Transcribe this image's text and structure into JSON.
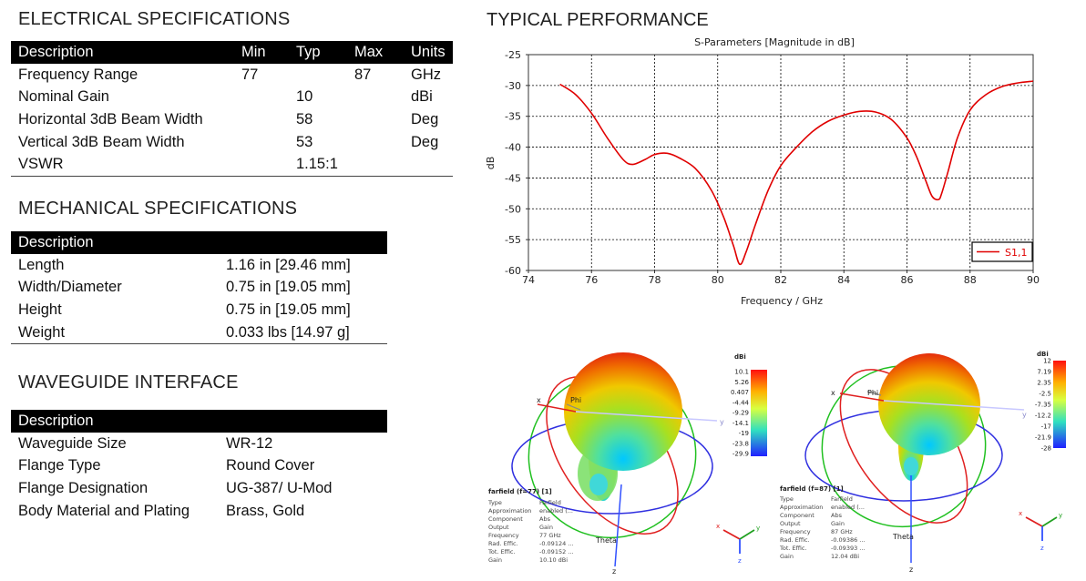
{
  "electrical": {
    "title": "ELECTRICAL SPECIFICATIONS",
    "headers": [
      "Description",
      "Min",
      "Typ",
      "Max",
      "Units"
    ],
    "rows": [
      [
        "Frequency Range",
        "77",
        "",
        "87",
        "GHz"
      ],
      [
        "Nominal Gain",
        "",
        "10",
        "",
        "dBi"
      ],
      [
        "Horizontal 3dB Beam Width",
        "",
        "58",
        "",
        "Deg"
      ],
      [
        "Vertical 3dB Beam Width",
        "",
        "53",
        "",
        "Deg"
      ],
      [
        "VSWR",
        "",
        "1.15:1",
        "",
        ""
      ]
    ]
  },
  "mechanical": {
    "title": "MECHANICAL SPECIFICATIONS",
    "header": "Description",
    "rows": [
      [
        "Length",
        "1.16 in [29.46 mm]"
      ],
      [
        "Width/Diameter",
        "0.75 in [19.05 mm]"
      ],
      [
        "Height",
        "0.75 in [19.05 mm]"
      ],
      [
        "Weight",
        "0.033 lbs [14.97 g]"
      ]
    ]
  },
  "waveguide": {
    "title": "WAVEGUIDE INTERFACE",
    "header": "Description",
    "rows": [
      [
        "Waveguide Size",
        "WR-12"
      ],
      [
        "Flange Type",
        "Round Cover"
      ],
      [
        "Flange Designation",
        "UG-387/ U-Mod"
      ],
      [
        "Body Material and Plating",
        "Brass, Gold"
      ]
    ]
  },
  "performance": {
    "title": "TYPICAL PERFORMANCE"
  },
  "chart_data": {
    "type": "line",
    "title": "S-Parameters [Magnitude in dB]",
    "xlabel": "Frequency / GHz",
    "ylabel": "dB",
    "xlim": [
      74,
      90
    ],
    "ylim": [
      -60,
      -25
    ],
    "xticks": [
      74,
      76,
      78,
      80,
      82,
      84,
      86,
      88,
      90
    ],
    "yticks": [
      -25,
      -30,
      -35,
      -40,
      -45,
      -50,
      -55,
      -60
    ],
    "grid": true,
    "legend": "bottom-right",
    "series": [
      {
        "name": "S1,1",
        "color": "#e00000",
        "x": [
          75.0,
          75.5,
          76.0,
          76.5,
          77.0,
          77.3,
          77.7,
          78.0,
          78.4,
          78.8,
          79.3,
          79.8,
          80.2,
          80.5,
          80.7,
          80.9,
          81.2,
          81.6,
          82.0,
          82.5,
          83.0,
          83.5,
          84.0,
          84.5,
          85.0,
          85.5,
          86.0,
          86.3,
          86.6,
          86.8,
          87.0,
          87.1,
          87.3,
          87.6,
          88.0,
          88.5,
          89.0,
          89.5,
          90.0
        ],
        "y": [
          -29.8,
          -31.5,
          -34.5,
          -38.5,
          -42.0,
          -42.8,
          -42.0,
          -41.2,
          -41.0,
          -41.8,
          -43.5,
          -47.0,
          -51.5,
          -56.0,
          -59.0,
          -57.0,
          -52.5,
          -47.0,
          -43.0,
          -40.0,
          -37.5,
          -35.8,
          -34.8,
          -34.2,
          -34.3,
          -35.5,
          -38.5,
          -41.5,
          -45.5,
          -48.0,
          -48.5,
          -47.5,
          -44.0,
          -38.5,
          -34.0,
          -31.5,
          -30.2,
          -29.6,
          -29.3
        ]
      }
    ]
  },
  "farfield_left": {
    "unit": "dBi",
    "scale": [
      "10.1",
      "5.26",
      "0.407",
      "-4.44",
      "-9.29",
      "-14.1",
      "-19",
      "-23.8",
      "-29.9"
    ],
    "title": "farfield (f=77) [1]",
    "props": [
      [
        "Type",
        "Farfield"
      ],
      [
        "Approximation",
        "enabled (..."
      ],
      [
        "Component",
        "Abs"
      ],
      [
        "Output",
        "Gain"
      ],
      [
        "Frequency",
        "77 GHz"
      ],
      [
        "Rad. Effic.",
        "-0.09124 ..."
      ],
      [
        "Tot. Effic.",
        "-0.09152 ..."
      ],
      [
        "Gain",
        "10.10 dBi"
      ]
    ],
    "labels": {
      "x": "x",
      "y": "y",
      "z": "z",
      "phi": "Phi",
      "theta": "Theta"
    }
  },
  "farfield_right": {
    "unit": "dBi",
    "scale": [
      "12",
      "7.19",
      "2.35",
      "-2.5",
      "-7.35",
      "-12.2",
      "-17",
      "-21.9",
      "-28"
    ],
    "title": "farfield (f=87) [1]",
    "props": [
      [
        "Type",
        "Farfield"
      ],
      [
        "Approximation",
        "enabled (..."
      ],
      [
        "Component",
        "Abs"
      ],
      [
        "Output",
        "Gain"
      ],
      [
        "Frequency",
        "87 GHz"
      ],
      [
        "Rad. Effic.",
        "-0.09386 ..."
      ],
      [
        "Tot. Effic.",
        "-0.09393 ..."
      ],
      [
        "Gain",
        "12.04 dBi"
      ]
    ],
    "labels": {
      "x": "x",
      "y": "y",
      "z": "z",
      "phi": "Phi",
      "theta": "Theta"
    }
  }
}
